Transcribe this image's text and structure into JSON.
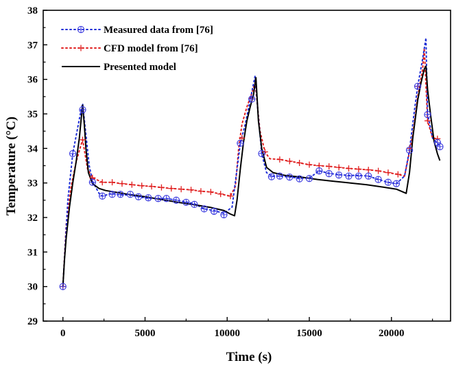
{
  "chart_data": {
    "type": "line",
    "title": "",
    "xlabel": "Time (s)",
    "ylabel": "Temperature (°C)",
    "xlim": [
      -1200,
      23600
    ],
    "ylim": [
      29,
      38
    ],
    "x_ticks": [
      0,
      5000,
      10000,
      15000,
      20000
    ],
    "y_ticks": [
      29,
      30,
      31,
      32,
      33,
      34,
      35,
      36,
      37,
      38
    ],
    "grid": false,
    "legend_position": "top-left",
    "series": [
      {
        "name": "Measured data from [76]",
        "style": "dotted",
        "marker": "circle-plus",
        "color": "#1f2fd6",
        "marker_color": "#3a3adf",
        "line_points": [
          [
            0,
            30.0
          ],
          [
            300,
            32.5
          ],
          [
            600,
            33.85
          ],
          [
            900,
            34.6
          ],
          [
            1100,
            35.1
          ],
          [
            1200,
            35.3
          ],
          [
            1400,
            34.4
          ],
          [
            1600,
            33.5
          ],
          [
            1800,
            33.05
          ],
          [
            2200,
            32.7
          ],
          [
            2400,
            32.62
          ],
          [
            3000,
            32.7
          ],
          [
            3500,
            32.65
          ],
          [
            4100,
            32.65
          ],
          [
            4600,
            32.6
          ],
          [
            5200,
            32.55
          ],
          [
            5800,
            32.55
          ],
          [
            6300,
            32.55
          ],
          [
            6900,
            32.5
          ],
          [
            7500,
            32.45
          ],
          [
            8000,
            32.4
          ],
          [
            8600,
            32.25
          ],
          [
            9200,
            32.2
          ],
          [
            9800,
            32.12
          ],
          [
            10300,
            32.3
          ],
          [
            10600,
            33.4
          ],
          [
            10800,
            34.15
          ],
          [
            11100,
            34.7
          ],
          [
            11400,
            35.4
          ],
          [
            11700,
            36.1
          ],
          [
            11900,
            34.9
          ],
          [
            12100,
            33.85
          ],
          [
            12400,
            33.3
          ],
          [
            12700,
            33.2
          ],
          [
            13200,
            33.2
          ],
          [
            13800,
            33.17
          ],
          [
            14400,
            33.14
          ],
          [
            15000,
            33.14
          ],
          [
            15600,
            33.35
          ],
          [
            16200,
            33.28
          ],
          [
            16800,
            33.24
          ],
          [
            17400,
            33.22
          ],
          [
            18000,
            33.22
          ],
          [
            18600,
            33.2
          ],
          [
            19200,
            33.1
          ],
          [
            19800,
            33.02
          ],
          [
            20300,
            32.98
          ],
          [
            20800,
            33.2
          ],
          [
            21100,
            33.95
          ],
          [
            21400,
            35.1
          ],
          [
            21600,
            35.8
          ],
          [
            21900,
            36.6
          ],
          [
            22100,
            37.2
          ],
          [
            22200,
            35.0
          ],
          [
            22500,
            34.3
          ],
          [
            22800,
            34.15
          ],
          [
            22950,
            34.05
          ]
        ],
        "marker_points": [
          [
            0,
            30.0
          ],
          [
            600,
            33.85
          ],
          [
            1200,
            35.12
          ],
          [
            1800,
            33.02
          ],
          [
            2400,
            32.62
          ],
          [
            3000,
            32.67
          ],
          [
            3500,
            32.67
          ],
          [
            4100,
            32.67
          ],
          [
            4600,
            32.6
          ],
          [
            5200,
            32.57
          ],
          [
            5800,
            32.55
          ],
          [
            6300,
            32.55
          ],
          [
            6900,
            32.5
          ],
          [
            7500,
            32.44
          ],
          [
            8000,
            32.38
          ],
          [
            8600,
            32.25
          ],
          [
            9200,
            32.18
          ],
          [
            9800,
            32.08
          ],
          [
            10800,
            34.15
          ],
          [
            11500,
            35.43
          ],
          [
            12100,
            33.85
          ],
          [
            12700,
            33.18
          ],
          [
            13200,
            33.2
          ],
          [
            13800,
            33.17
          ],
          [
            14400,
            33.12
          ],
          [
            15000,
            33.13
          ],
          [
            15600,
            33.35
          ],
          [
            16200,
            33.27
          ],
          [
            16800,
            33.23
          ],
          [
            17400,
            33.2
          ],
          [
            18000,
            33.2
          ],
          [
            18600,
            33.2
          ],
          [
            19200,
            33.1
          ],
          [
            19800,
            33.02
          ],
          [
            20300,
            32.98
          ],
          [
            21100,
            33.95
          ],
          [
            21600,
            35.8
          ],
          [
            22200,
            34.98
          ],
          [
            22800,
            34.17
          ],
          [
            22950,
            34.05
          ]
        ]
      },
      {
        "name": "CFD model from [76]",
        "style": "dotted",
        "marker": "plus",
        "color": "#e02020",
        "line_points": [
          [
            0,
            30.0
          ],
          [
            200,
            31.8
          ],
          [
            500,
            32.9
          ],
          [
            800,
            33.6
          ],
          [
            1100,
            34.1
          ],
          [
            1200,
            34.25
          ],
          [
            1500,
            33.4
          ],
          [
            1800,
            33.15
          ],
          [
            2400,
            33.02
          ],
          [
            3000,
            33.02
          ],
          [
            3600,
            32.98
          ],
          [
            4200,
            32.95
          ],
          [
            4800,
            32.92
          ],
          [
            5400,
            32.9
          ],
          [
            6000,
            32.87
          ],
          [
            6600,
            32.84
          ],
          [
            7200,
            32.82
          ],
          [
            7800,
            32.8
          ],
          [
            8400,
            32.76
          ],
          [
            9000,
            32.74
          ],
          [
            9600,
            32.68
          ],
          [
            10200,
            32.62
          ],
          [
            10500,
            32.9
          ],
          [
            10700,
            34.0
          ],
          [
            10900,
            34.7
          ],
          [
            11200,
            35.2
          ],
          [
            11500,
            35.6
          ],
          [
            11700,
            35.9
          ],
          [
            12000,
            34.5
          ],
          [
            12300,
            33.9
          ],
          [
            12600,
            33.7
          ],
          [
            13200,
            33.68
          ],
          [
            13800,
            33.63
          ],
          [
            14400,
            33.58
          ],
          [
            15000,
            33.53
          ],
          [
            15600,
            33.5
          ],
          [
            16200,
            33.48
          ],
          [
            16800,
            33.45
          ],
          [
            17400,
            33.42
          ],
          [
            18000,
            33.4
          ],
          [
            18600,
            33.38
          ],
          [
            19200,
            33.35
          ],
          [
            19800,
            33.3
          ],
          [
            20400,
            33.25
          ],
          [
            20800,
            33.2
          ],
          [
            21100,
            33.9
          ],
          [
            21300,
            34.4
          ],
          [
            21600,
            35.5
          ],
          [
            21900,
            36.3
          ],
          [
            22000,
            36.9
          ],
          [
            22200,
            34.8
          ],
          [
            22500,
            34.3
          ],
          [
            22800,
            34.28
          ]
        ],
        "marker_points": [
          [
            0,
            30.0
          ],
          [
            1200,
            34.25
          ],
          [
            1800,
            33.15
          ],
          [
            2400,
            33.02
          ],
          [
            3000,
            33.02
          ],
          [
            3600,
            32.98
          ],
          [
            4200,
            32.95
          ],
          [
            4800,
            32.92
          ],
          [
            5400,
            32.9
          ],
          [
            6000,
            32.87
          ],
          [
            6600,
            32.84
          ],
          [
            7200,
            32.82
          ],
          [
            7800,
            32.8
          ],
          [
            8400,
            32.76
          ],
          [
            9000,
            32.74
          ],
          [
            9600,
            32.68
          ],
          [
            10200,
            32.62
          ],
          [
            10900,
            34.3
          ],
          [
            11500,
            35.43
          ],
          [
            12300,
            33.9
          ],
          [
            13200,
            33.68
          ],
          [
            13800,
            33.63
          ],
          [
            14400,
            33.58
          ],
          [
            15000,
            33.53
          ],
          [
            15600,
            33.5
          ],
          [
            16200,
            33.48
          ],
          [
            16800,
            33.45
          ],
          [
            17400,
            33.42
          ],
          [
            18000,
            33.4
          ],
          [
            18600,
            33.38
          ],
          [
            19200,
            33.35
          ],
          [
            19800,
            33.3
          ],
          [
            20400,
            33.25
          ],
          [
            21100,
            34.0
          ],
          [
            21600,
            35.8
          ],
          [
            22200,
            34.8
          ],
          [
            22800,
            34.28
          ]
        ]
      },
      {
        "name": "Presented model",
        "style": "solid",
        "marker": "none",
        "color": "#000000",
        "line_points": [
          [
            0,
            30.0
          ],
          [
            100,
            30.8
          ],
          [
            200,
            31.4
          ],
          [
            400,
            32.3
          ],
          [
            600,
            33.0
          ],
          [
            800,
            33.6
          ],
          [
            1000,
            34.3
          ],
          [
            1100,
            34.8
          ],
          [
            1200,
            35.25
          ],
          [
            1300,
            34.7
          ],
          [
            1400,
            34.0
          ],
          [
            1550,
            33.3
          ],
          [
            1800,
            32.98
          ],
          [
            2200,
            32.84
          ],
          [
            2600,
            32.78
          ],
          [
            3000,
            32.75
          ],
          [
            4000,
            32.67
          ],
          [
            5000,
            32.6
          ],
          [
            6000,
            32.52
          ],
          [
            7000,
            32.44
          ],
          [
            8000,
            32.37
          ],
          [
            9000,
            32.29
          ],
          [
            9800,
            32.2
          ],
          [
            10200,
            32.1
          ],
          [
            10450,
            32.05
          ],
          [
            10600,
            32.5
          ],
          [
            10800,
            33.4
          ],
          [
            11000,
            34.2
          ],
          [
            11200,
            34.8
          ],
          [
            11400,
            35.2
          ],
          [
            11600,
            35.55
          ],
          [
            11750,
            36.05
          ],
          [
            11900,
            34.8
          ],
          [
            12100,
            34.0
          ],
          [
            12400,
            33.45
          ],
          [
            12800,
            33.3
          ],
          [
            13500,
            33.22
          ],
          [
            14500,
            33.17
          ],
          [
            15500,
            33.1
          ],
          [
            16500,
            33.05
          ],
          [
            17500,
            33.0
          ],
          [
            18500,
            32.95
          ],
          [
            19500,
            32.88
          ],
          [
            20300,
            32.82
          ],
          [
            20900,
            32.7
          ],
          [
            21100,
            33.3
          ],
          [
            21300,
            34.3
          ],
          [
            21600,
            35.4
          ],
          [
            21800,
            35.9
          ],
          [
            22000,
            36.3
          ],
          [
            22100,
            36.38
          ],
          [
            22200,
            35.7
          ],
          [
            22400,
            34.9
          ],
          [
            22600,
            34.2
          ],
          [
            22800,
            33.85
          ],
          [
            22950,
            33.65
          ]
        ]
      }
    ]
  }
}
